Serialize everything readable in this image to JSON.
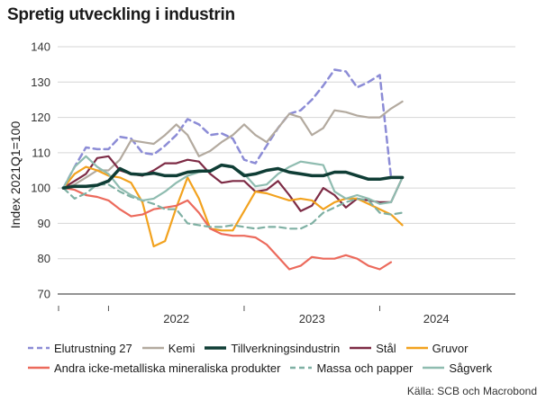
{
  "title": "Spretig utveckling i industrin",
  "source": "Källa: SCB och Macrobond",
  "chart_data": {
    "type": "line",
    "title": "Spretig utveckling i industrin",
    "xlabel": "",
    "ylabel": "Index 2021Q1=100",
    "ylim": [
      70,
      140
    ],
    "yticks": [
      70,
      80,
      90,
      100,
      110,
      120,
      130,
      140
    ],
    "x_start_month": 0,
    "x_range_months": [
      -0.5,
      40
    ],
    "xtick_labels": [
      {
        "label": "2022",
        "center_month": 10
      },
      {
        "label": "2023",
        "center_month": 22
      },
      {
        "label": "2024",
        "center_month": 33
      }
    ],
    "year_boundaries": [
      4,
      16,
      28
    ],
    "series": [
      {
        "name": "Elutrustning 27",
        "color": "#8c8cd6",
        "style": "dash",
        "width": 2.5,
        "values": [
          100,
          106,
          111.5,
          111,
          111,
          114.5,
          114,
          110,
          109.5,
          112,
          115,
          119.5,
          118,
          115,
          115.5,
          114,
          108,
          107,
          112,
          117,
          121,
          122,
          125,
          129,
          133.5,
          133,
          128.5,
          130,
          132,
          103
        ]
      },
      {
        "name": "Kemi",
        "color": "#b3aa9f",
        "style": "solid",
        "width": 2.2,
        "values": [
          100,
          101,
          103,
          105,
          105,
          108,
          113.5,
          113,
          112.5,
          115,
          118,
          115,
          109,
          110.5,
          113,
          115,
          118,
          115,
          113,
          117,
          121,
          120,
          115,
          117,
          122,
          121.5,
          120.5,
          120,
          120,
          122.5,
          124.5
        ]
      },
      {
        "name": "Tillverkningsindustrin",
        "color": "#0f3d35",
        "style": "solid",
        "width": 3.5,
        "values": [
          100,
          100.5,
          100.5,
          100.8,
          102,
          105.5,
          104,
          103.8,
          104.2,
          103.5,
          103.5,
          104.5,
          104.8,
          104.8,
          106.5,
          106,
          103.5,
          104,
          105,
          105.5,
          104.5,
          104,
          103.5,
          103.5,
          104.5,
          104.5,
          103.5,
          102.5,
          102.5,
          103,
          103
        ]
      },
      {
        "name": "Stål",
        "color": "#7d2b45",
        "style": "solid",
        "width": 2.2,
        "values": [
          100,
          102,
          104,
          108.5,
          109,
          105,
          104,
          103.5,
          105,
          107,
          107,
          108,
          107.5,
          104,
          101.5,
          102,
          102,
          99,
          99.5,
          102,
          98,
          93.5,
          95,
          100,
          98,
          94.5,
          97,
          96.5,
          96,
          96,
          103
        ]
      },
      {
        "name": "Gruvor",
        "color": "#f2a21e",
        "style": "solid",
        "width": 2.2,
        "values": [
          100,
          104,
          106,
          105,
          103.5,
          103,
          101.5,
          96,
          83.5,
          85,
          94.5,
          103,
          97,
          88.5,
          88,
          88,
          93.5,
          99,
          98.5,
          97.5,
          96.5,
          97,
          96.5,
          94,
          96,
          97,
          97,
          95.5,
          94,
          92.5,
          89.5
        ]
      },
      {
        "name": "Andra icke-metalliska mineraliska produkter",
        "color": "#ec6a5c",
        "style": "solid",
        "width": 2.2,
        "values": [
          100,
          99.5,
          98,
          97.5,
          96.5,
          94,
          92,
          92.5,
          94,
          94.5,
          95,
          96.5,
          93,
          88.5,
          87,
          86.5,
          86.5,
          86,
          84,
          80.5,
          77,
          78,
          80.5,
          80,
          80,
          81,
          80,
          78,
          77,
          79
        ]
      },
      {
        "name": "Massa och papper",
        "color": "#7fb0a3",
        "style": "dash",
        "width": 2.2,
        "values": [
          100,
          97,
          98.5,
          101,
          101,
          99,
          97.5,
          96.5,
          95.5,
          94,
          94,
          90,
          89.5,
          89,
          89,
          89.5,
          89,
          88.5,
          89,
          89,
          88.5,
          88.5,
          90,
          93,
          94.5,
          96,
          97,
          96.5,
          93,
          92.5,
          93
        ]
      },
      {
        "name": "Sågverk",
        "color": "#8fbcb0",
        "style": "solid",
        "width": 2.2,
        "values": [
          100,
          106,
          109,
          106,
          104,
          100,
          98,
          96.5,
          97,
          99,
          101.5,
          103.5,
          104.5,
          105,
          106.5,
          106,
          104,
          100.5,
          101,
          104,
          106,
          107.5,
          107,
          106.5,
          99,
          97,
          98,
          97,
          95.5,
          96,
          103
        ]
      }
    ]
  }
}
